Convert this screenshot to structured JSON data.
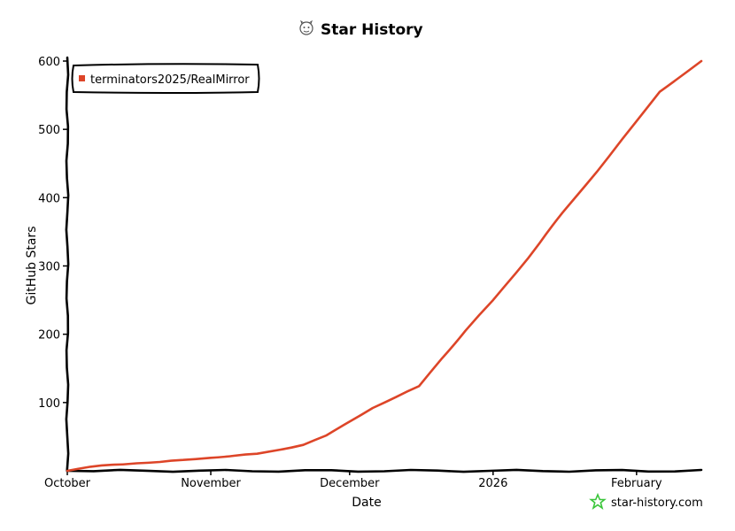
{
  "chart_data": {
    "type": "line",
    "title": "Star History",
    "xlabel": "Date",
    "ylabel": "GitHub Stars",
    "x_ticks": [
      {
        "label": "October",
        "date": "2025-10-01"
      },
      {
        "label": "November",
        "date": "2025-11-01"
      },
      {
        "label": "December",
        "date": "2025-12-01"
      },
      {
        "label": "2026",
        "date": "2026-01-01"
      },
      {
        "label": "February",
        "date": "2026-02-01"
      }
    ],
    "y_ticks": [
      100,
      200,
      300,
      400,
      500,
      600
    ],
    "ylim": [
      0,
      600
    ],
    "xlim": [
      "2025-10-01",
      "2026-02-15"
    ],
    "grid": false,
    "legend_position": "top-left",
    "series": [
      {
        "name": "terminators2025/RealMirror",
        "color": "#dd4528",
        "points": [
          {
            "x": "2025-10-01",
            "y": 0
          },
          {
            "x": "2025-10-06",
            "y": 6
          },
          {
            "x": "2025-10-11",
            "y": 9
          },
          {
            "x": "2025-10-16",
            "y": 11
          },
          {
            "x": "2025-10-21",
            "y": 13
          },
          {
            "x": "2025-10-26",
            "y": 16
          },
          {
            "x": "2025-11-01",
            "y": 19
          },
          {
            "x": "2025-11-06",
            "y": 22
          },
          {
            "x": "2025-11-11",
            "y": 25
          },
          {
            "x": "2025-11-16",
            "y": 31
          },
          {
            "x": "2025-11-21",
            "y": 38
          },
          {
            "x": "2025-11-26",
            "y": 52
          },
          {
            "x": "2025-12-01",
            "y": 72
          },
          {
            "x": "2025-12-06",
            "y": 92
          },
          {
            "x": "2025-12-11",
            "y": 108
          },
          {
            "x": "2025-12-16",
            "y": 124
          },
          {
            "x": "2025-12-21",
            "y": 165
          },
          {
            "x": "2025-12-26",
            "y": 205
          },
          {
            "x": "2026-01-01",
            "y": 250
          },
          {
            "x": "2026-01-06",
            "y": 290
          },
          {
            "x": "2026-01-11",
            "y": 333
          },
          {
            "x": "2026-01-16",
            "y": 378
          },
          {
            "x": "2026-01-21",
            "y": 418
          },
          {
            "x": "2026-01-26",
            "y": 460
          },
          {
            "x": "2026-02-01",
            "y": 512
          },
          {
            "x": "2026-02-06",
            "y": 555
          },
          {
            "x": "2026-02-15",
            "y": 600
          }
        ]
      }
    ]
  },
  "watermark": {
    "text": "star-history.com",
    "color": "#3ac53a"
  },
  "title_icon": "octocat-icon"
}
